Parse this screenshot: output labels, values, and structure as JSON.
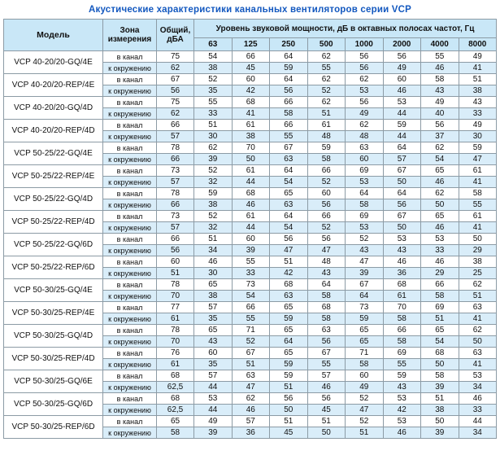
{
  "title": "Акустические характеристики канальных вентиляторов  серии VCP",
  "table": {
    "col_model": "Модель",
    "col_zone": "Зона измерения",
    "col_total": "Общий, дБА",
    "col_spectrum": "Уровень звуковой мощности, дБ в октавных полосах частот, Гц",
    "frequencies": [
      "63",
      "125",
      "250",
      "500",
      "1000",
      "2000",
      "4000",
      "8000"
    ],
    "groups": [
      {
        "model": "VCP 40-20/20-GQ/4E",
        "rows": [
          {
            "zone": "в канал",
            "total": "75",
            "values": [
              54,
              66,
              64,
              62,
              56,
              56,
              55,
              49
            ]
          },
          {
            "zone": "к окружению",
            "total": "62",
            "values": [
              38,
              45,
              59,
              55,
              56,
              49,
              46,
              41
            ]
          }
        ]
      },
      {
        "model": "VCP 40-20/20-REP/4E",
        "rows": [
          {
            "zone": "в канал",
            "total": "67",
            "values": [
              52,
              60,
              64,
              62,
              62,
              60,
              58,
              51
            ]
          },
          {
            "zone": "к окружению",
            "total": "56",
            "values": [
              35,
              42,
              56,
              52,
              53,
              46,
              43,
              38
            ]
          }
        ]
      },
      {
        "model": "VCP 40-20/20-GQ/4D",
        "rows": [
          {
            "zone": "в канал",
            "total": "75",
            "values": [
              55,
              68,
              66,
              62,
              56,
              53,
              49,
              43
            ]
          },
          {
            "zone": "к окружению",
            "total": "62",
            "values": [
              33,
              41,
              58,
              51,
              49,
              44,
              40,
              33
            ]
          }
        ]
      },
      {
        "model": "VCP 40-20/20-REP/4D",
        "rows": [
          {
            "zone": "в канал",
            "total": "66",
            "values": [
              51,
              61,
              66,
              61,
              62,
              59,
              56,
              49
            ]
          },
          {
            "zone": "к окружению",
            "total": "57",
            "values": [
              30,
              38,
              55,
              48,
              48,
              44,
              37,
              30
            ]
          }
        ]
      },
      {
        "model": "VCP 50-25/22-GQ/4E",
        "rows": [
          {
            "zone": "в канал",
            "total": "78",
            "values": [
              62,
              70,
              67,
              59,
              63,
              64,
              62,
              59
            ]
          },
          {
            "zone": "к окружению",
            "total": "66",
            "values": [
              39,
              50,
              63,
              58,
              60,
              57,
              54,
              47
            ]
          }
        ]
      },
      {
        "model": "VCP 50-25/22-REP/4E",
        "rows": [
          {
            "zone": "в канал",
            "total": "73",
            "values": [
              52,
              61,
              64,
              66,
              69,
              67,
              65,
              61
            ]
          },
          {
            "zone": "к окружению",
            "total": "57",
            "values": [
              32,
              44,
              54,
              52,
              53,
              50,
              46,
              41
            ]
          }
        ]
      },
      {
        "model": "VCP 50-25/22-GQ/4D",
        "rows": [
          {
            "zone": "в канал",
            "total": "78",
            "values": [
              59,
              68,
              65,
              60,
              64,
              64,
              62,
              58
            ]
          },
          {
            "zone": "к окружению",
            "total": "66",
            "values": [
              38,
              46,
              63,
              56,
              58,
              56,
              50,
              55
            ]
          }
        ]
      },
      {
        "model": "VCP 50-25/22-REP/4D",
        "rows": [
          {
            "zone": "в канал",
            "total": "73",
            "values": [
              52,
              61,
              64,
              66,
              69,
              67,
              65,
              61
            ]
          },
          {
            "zone": "к окружению",
            "total": "57",
            "values": [
              32,
              44,
              54,
              52,
              53,
              50,
              46,
              41
            ]
          }
        ]
      },
      {
        "model": "VCP 50-25/22-GQ/6D",
        "rows": [
          {
            "zone": "в канал",
            "total": "66",
            "values": [
              51,
              60,
              56,
              56,
              52,
              53,
              53,
              50
            ]
          },
          {
            "zone": "к окружению",
            "total": "56",
            "values": [
              34,
              39,
              47,
              47,
              43,
              43,
              33,
              29
            ]
          }
        ]
      },
      {
        "model": "VCP 50-25/22-REP/6D",
        "rows": [
          {
            "zone": "в канал",
            "total": "60",
            "values": [
              46,
              55,
              51,
              48,
              47,
              46,
              46,
              38
            ]
          },
          {
            "zone": "к окружению",
            "total": "51",
            "values": [
              30,
              33,
              42,
              43,
              39,
              36,
              29,
              25
            ]
          }
        ]
      },
      {
        "model": "VCP 50-30/25-GQ/4E",
        "rows": [
          {
            "zone": "в канал",
            "total": "78",
            "values": [
              65,
              73,
              68,
              64,
              67,
              68,
              66,
              62
            ]
          },
          {
            "zone": "к окружению",
            "total": "70",
            "values": [
              38,
              54,
              63,
              58,
              64,
              61,
              58,
              51
            ]
          }
        ]
      },
      {
        "model": "VCP 50-30/25-REP/4E",
        "rows": [
          {
            "zone": "в канал",
            "total": "77",
            "values": [
              57,
              66,
              65,
              68,
              73,
              70,
              69,
              63
            ]
          },
          {
            "zone": "к окружению",
            "total": "61",
            "values": [
              35,
              55,
              59,
              58,
              59,
              58,
              51,
              41
            ]
          }
        ]
      },
      {
        "model": "VCP 50-30/25-GQ/4D",
        "rows": [
          {
            "zone": "в канал",
            "total": "78",
            "values": [
              65,
              71,
              65,
              63,
              65,
              66,
              65,
              62
            ]
          },
          {
            "zone": "к окружению",
            "total": "70",
            "values": [
              43,
              52,
              64,
              56,
              65,
              58,
              54,
              50
            ]
          }
        ]
      },
      {
        "model": "VCP 50-30/25-REP/4D",
        "rows": [
          {
            "zone": "в канал",
            "total": "76",
            "values": [
              60,
              67,
              65,
              67,
              71,
              69,
              68,
              63
            ]
          },
          {
            "zone": "к окружению",
            "total": "61",
            "values": [
              35,
              51,
              59,
              55,
              58,
              55,
              50,
              41
            ]
          }
        ]
      },
      {
        "model": "VCP 50-30/25-GQ/6E",
        "rows": [
          {
            "zone": "в канал",
            "total": "68",
            "values": [
              57,
              63,
              59,
              57,
              60,
              59,
              58,
              53
            ]
          },
          {
            "zone": "к окружению",
            "total": "62,5",
            "values": [
              44,
              47,
              51,
              46,
              49,
              43,
              39,
              34
            ]
          }
        ]
      },
      {
        "model": "VCP 50-30/25-GQ/6D",
        "rows": [
          {
            "zone": "в канал",
            "total": "68",
            "values": [
              53,
              62,
              56,
              56,
              52,
              53,
              51,
              46
            ]
          },
          {
            "zone": "к окружению",
            "total": "62,5",
            "values": [
              44,
              46,
              50,
              45,
              47,
              42,
              38,
              33
            ]
          }
        ]
      },
      {
        "model": "VCP 50-30/25-REP/6D",
        "rows": [
          {
            "zone": "в канал",
            "total": "65",
            "values": [
              49,
              57,
              51,
              51,
              52,
              53,
              50,
              44
            ]
          },
          {
            "zone": "к окружению",
            "total": "58",
            "values": [
              39,
              36,
              45,
              50,
              51,
              46,
              39,
              34
            ]
          }
        ]
      }
    ]
  }
}
